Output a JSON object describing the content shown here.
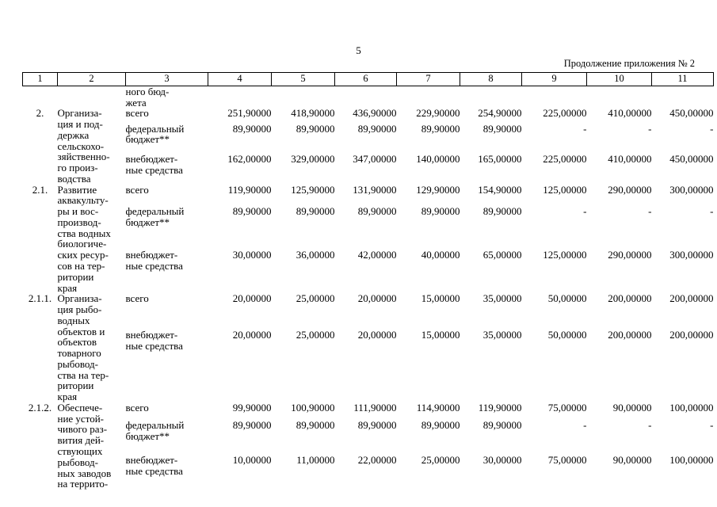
{
  "page": {
    "number": "5",
    "continuation": "Продолжение приложения № 2"
  },
  "table": {
    "column_numbers": [
      "1",
      "2",
      "3",
      "4",
      "5",
      "6",
      "7",
      "8",
      "9",
      "10",
      "11"
    ],
    "carryover_text": "ного бюд-\nжета",
    "groups": [
      {
        "num": "2.",
        "name": "Организа-\nция и под-\nдержка\nсельскохо-\nзяйственно-\nго произ-\nводства",
        "lines": [
          {
            "type": "всего",
            "values": [
              "251,90000",
              "418,90000",
              "436,90000",
              "229,90000",
              "254,90000",
              "225,00000",
              "410,00000",
              "450,00000"
            ]
          },
          {
            "type": "федеральный\nбюджет**",
            "values": [
              "89,90000",
              "89,90000",
              "89,90000",
              "89,90000",
              "89,90000",
              "-",
              "-",
              "-"
            ]
          },
          {
            "type": "внебюджет-\nные средства",
            "values": [
              "162,00000",
              "329,00000",
              "347,00000",
              "140,00000",
              "165,00000",
              "225,00000",
              "410,00000",
              "450,00000"
            ]
          }
        ]
      },
      {
        "num": "2.1.",
        "name": "Развитие\nаквакульту-\nры и вос-\nпроизвод-\nства водных\nбиологиче-\nских ресур-\nсов на тер-\nритории\nкрая",
        "lines": [
          {
            "type": "всего",
            "values": [
              "119,90000",
              "125,90000",
              "131,90000",
              "129,90000",
              "154,90000",
              "125,00000",
              "290,00000",
              "300,00000"
            ]
          },
          {
            "type": "федеральный\nбюджет**",
            "values": [
              "89,90000",
              "89,90000",
              "89,90000",
              "89,90000",
              "89,90000",
              "-",
              "-",
              "-"
            ]
          },
          {
            "type": "внебюджет-\nные средства",
            "values": [
              "30,00000",
              "36,00000",
              "42,00000",
              "40,00000",
              "65,00000",
              "125,00000",
              "290,00000",
              "300,00000"
            ]
          }
        ]
      },
      {
        "num": "2.1.1.",
        "name": "Организа-\nция рыбо-\nводных\nобъектов и\nобъектов\nтоварного\nрыбовод-\nства на тер-\nритории\nкрая",
        "lines": [
          {
            "type": "всего",
            "values": [
              "20,00000",
              "25,00000",
              "20,00000",
              "15,00000",
              "35,00000",
              "50,00000",
              "200,00000",
              "200,00000"
            ]
          },
          {
            "type": "внебюджет-\nные средства",
            "values": [
              "20,00000",
              "25,00000",
              "20,00000",
              "15,00000",
              "35,00000",
              "50,00000",
              "200,00000",
              "200,00000"
            ]
          }
        ]
      },
      {
        "num": "2.1.2.",
        "name": "Обеспече-\nние устой-\nчивого раз-\nвития дей-\nствующих\nрыбовод-\nных заводов\nна террито-",
        "lines": [
          {
            "type": "всего",
            "values": [
              "99,90000",
              "100,90000",
              "111,90000",
              "114,90000",
              "119,90000",
              "75,00000",
              "90,00000",
              "100,00000"
            ]
          },
          {
            "type": "федеральный\nбюджет**",
            "values": [
              "89,90000",
              "89,90000",
              "89,90000",
              "89,90000",
              "89,90000",
              "-",
              "-",
              "-"
            ]
          },
          {
            "type": "внебюджет-\nные средства",
            "values": [
              "10,00000",
              "11,00000",
              "22,00000",
              "25,00000",
              "30,00000",
              "75,00000",
              "90,00000",
              "100,00000"
            ]
          }
        ]
      }
    ]
  }
}
